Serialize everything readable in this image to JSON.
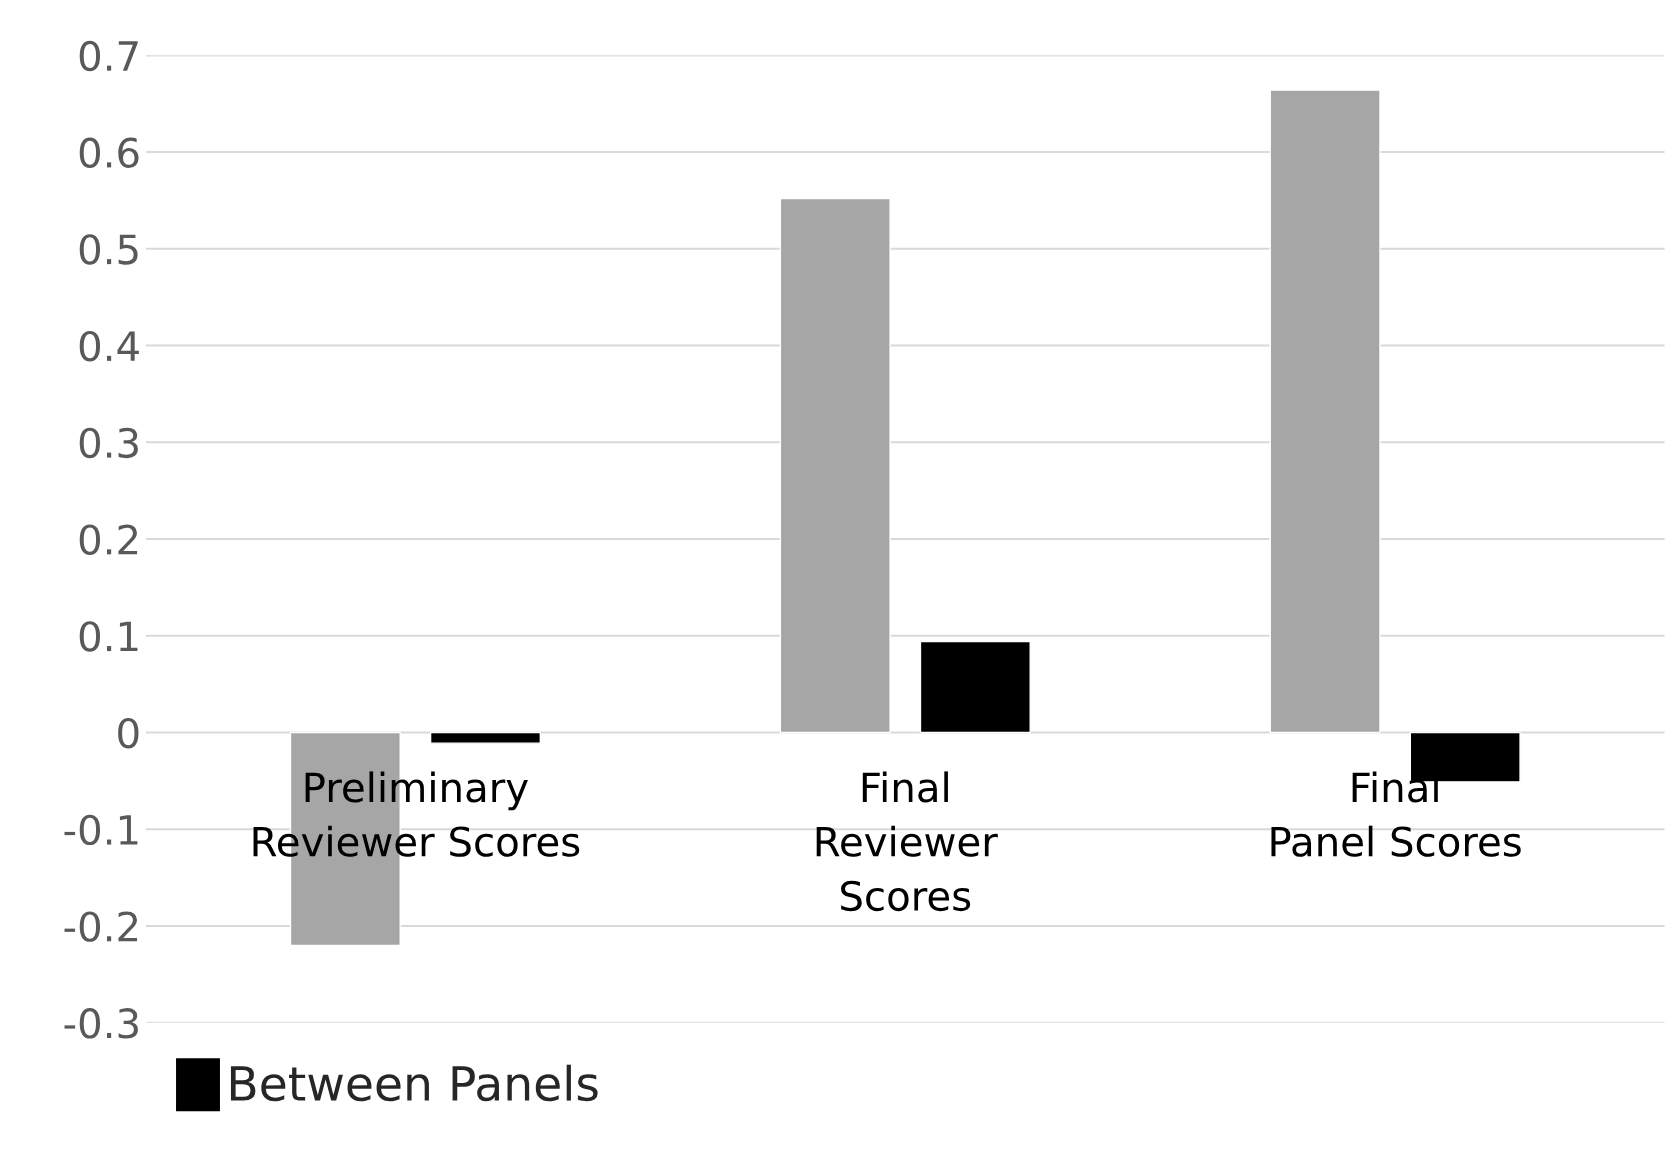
{
  "chart_data": {
    "type": "bar",
    "categories": [
      "Preliminary\nReviewer Scores",
      "Final\nReviewer\nScores",
      "Final\nPanel Scores"
    ],
    "series": [
      {
        "color": "#a6a6a6",
        "values": [
          -0.22,
          0.552,
          0.664
        ]
      },
      {
        "name": "Between Panels",
        "color": "#000000",
        "values": [
          -0.011,
          0.094,
          -0.051
        ]
      }
    ],
    "ylim": [
      -0.3,
      0.7
    ],
    "yticks": [
      {
        "value": -0.3,
        "label": "-0.3"
      },
      {
        "value": -0.2,
        "label": "-0.2"
      },
      {
        "value": -0.1,
        "label": "-0.1"
      },
      0,
      0.1,
      0.2,
      0.3,
      0.4,
      0.5,
      0.6,
      0.7
    ],
    "grid": "y",
    "legend": "bottom left"
  }
}
